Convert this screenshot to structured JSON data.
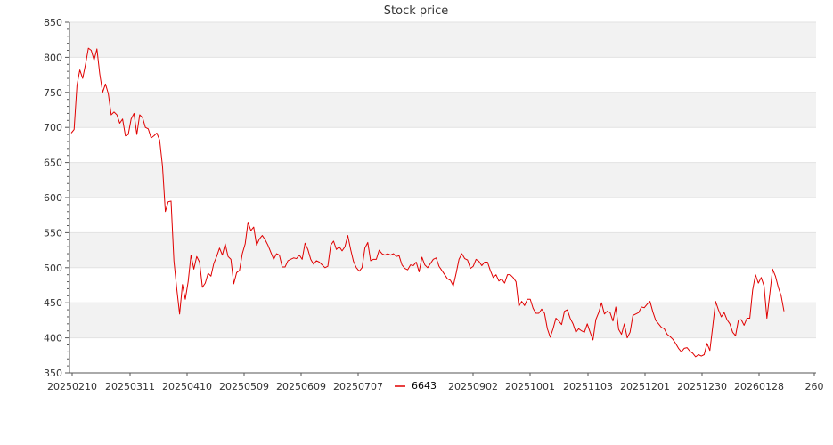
{
  "chart_data": {
    "type": "line",
    "title": "Stock price",
    "xlabel": "",
    "ylabel": "",
    "ylim": [
      350,
      850
    ],
    "y_ticks": [
      350,
      400,
      450,
      500,
      550,
      600,
      650,
      700,
      750,
      800,
      850
    ],
    "x_tick_labels": [
      "20250210",
      "20250311",
      "20250410",
      "20250509",
      "20250609",
      "20250707",
      "20250902",
      "20251001",
      "20251103",
      "20251201",
      "20251230",
      "20260128",
      "260"
    ],
    "grid": "horizontal, alternating bands",
    "legend_position": "bottom",
    "series": [
      {
        "name": "6643",
        "color": "#e00000",
        "values": [
          692,
          697,
          760,
          782,
          770,
          790,
          813,
          810,
          796,
          812,
          776,
          750,
          762,
          748,
          718,
          722,
          718,
          706,
          712,
          688,
          690,
          712,
          720,
          690,
          718,
          714,
          700,
          698,
          685,
          688,
          692,
          682,
          645,
          580,
          594,
          595,
          510,
          470,
          434,
          476,
          455,
          480,
          518,
          498,
          516,
          508,
          472,
          478,
          492,
          488,
          506,
          516,
          528,
          518,
          534,
          516,
          512,
          477,
          493,
          496,
          520,
          534,
          565,
          553,
          558,
          532,
          541,
          546,
          540,
          532,
          522,
          512,
          520,
          518,
          501,
          501,
          510,
          512,
          514,
          513,
          518,
          512,
          535,
          526,
          512,
          505,
          510,
          508,
          504,
          500,
          502,
          532,
          538,
          526,
          530,
          524,
          530,
          546,
          526,
          509,
          500,
          495,
          500,
          528,
          536,
          510,
          512,
          512,
          525,
          520,
          518,
          520,
          518,
          520,
          516,
          517,
          504,
          499,
          497,
          504,
          503,
          508,
          494,
          515,
          504,
          500,
          506,
          512,
          514,
          502,
          496,
          490,
          484,
          482,
          474,
          492,
          512,
          520,
          513,
          511,
          499,
          502,
          512,
          509,
          503,
          508,
          508,
          496,
          486,
          490,
          481,
          484,
          478,
          490,
          490,
          486,
          480,
          445,
          452,
          446,
          455,
          455,
          442,
          435,
          435,
          441,
          435,
          413,
          401,
          413,
          428,
          424,
          419,
          438,
          440,
          428,
          420,
          408,
          413,
          410,
          408,
          420,
          408,
          397,
          426,
          436,
          450,
          434,
          438,
          436,
          424,
          444,
          412,
          405,
          420,
          400,
          408,
          432,
          434,
          436,
          444,
          443,
          448,
          452,
          437,
          425,
          420,
          415,
          413,
          405,
          402,
          398,
          392,
          385,
          380,
          385,
          386,
          381,
          378,
          373,
          376,
          374,
          376,
          392,
          382,
          416,
          452,
          440,
          430,
          436,
          426,
          420,
          408,
          403,
          425,
          426,
          418,
          428,
          428,
          468,
          490,
          478,
          486,
          474,
          428,
          462,
          498,
          488,
          472,
          460,
          438
        ]
      }
    ]
  }
}
